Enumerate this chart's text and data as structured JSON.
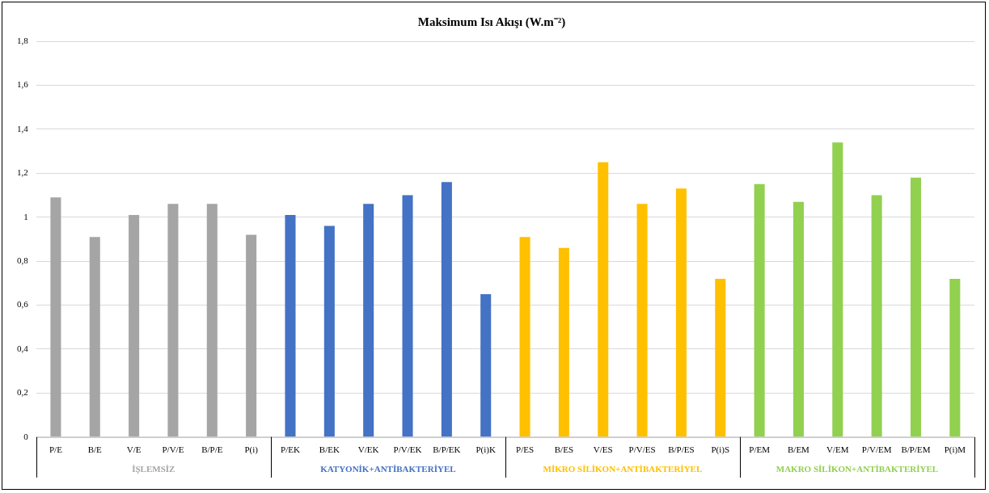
{
  "chart_data": {
    "type": "bar",
    "title": "Maksimum Isı Akışı (W.m⁻²)",
    "categories": [
      "P/E",
      "B/E",
      "V/E",
      "P/V/E",
      "B/P/E",
      "P(i)",
      "P/EK",
      "B/EK",
      "V/EK",
      "P/V/EK",
      "B/P/EK",
      "P(i)K",
      "P/ES",
      "B/ES",
      "V/ES",
      "P/V/ES",
      "B/P/ES",
      "P(i)S",
      "P/EM",
      "B/EM",
      "V/EM",
      "P/V/EM",
      "B/P/EM",
      "P(i)M"
    ],
    "series": [
      {
        "name": "İŞLEMSİZ",
        "color": "#a5a5a5",
        "values": [
          1.09,
          0.91,
          1.01,
          1.06,
          1.06,
          0.92,
          null,
          null,
          null,
          null,
          null,
          null,
          null,
          null,
          null,
          null,
          null,
          null,
          null,
          null,
          null,
          null,
          null,
          null
        ]
      },
      {
        "name": "KATYONİK+ANTİBAKTERİYEL",
        "color": "#4472c4",
        "values": [
          null,
          null,
          null,
          null,
          null,
          null,
          1.01,
          0.96,
          1.06,
          1.1,
          1.16,
          0.65,
          null,
          null,
          null,
          null,
          null,
          null,
          null,
          null,
          null,
          null,
          null,
          null
        ]
      },
      {
        "name": "MİKRO SİLİKON+ANTİBAKTERİYEL",
        "color": "#ffc000",
        "values": [
          null,
          null,
          null,
          null,
          null,
          null,
          null,
          null,
          null,
          null,
          null,
          null,
          0.91,
          0.86,
          1.25,
          1.06,
          1.13,
          0.72,
          null,
          null,
          null,
          null,
          null,
          null
        ]
      },
      {
        "name": "MAKRO SİLİKON+ANTİBAKTERİYEL",
        "color": "#92d050",
        "values": [
          null,
          null,
          null,
          null,
          null,
          null,
          null,
          null,
          null,
          null,
          null,
          null,
          null,
          null,
          null,
          null,
          null,
          null,
          1.15,
          1.07,
          1.34,
          1.1,
          1.18,
          0.72
        ]
      }
    ],
    "ylim": [
      0,
      1.8
    ],
    "yticks": [
      0,
      {
        "value": 0.2,
        "label": "0,2"
      },
      {
        "value": 0.4,
        "label": "0,4"
      },
      {
        "value": 0.6,
        "label": "0,6"
      },
      {
        "value": 0.8,
        "label": "0,8"
      },
      1,
      {
        "value": 1.2,
        "label": "1,2"
      },
      {
        "value": 1.4,
        "label": "1,4"
      },
      {
        "value": 1.6,
        "label": "1,6"
      },
      {
        "value": 1.8,
        "label": "1,8"
      }
    ],
    "grid": "y",
    "legend": false
  }
}
